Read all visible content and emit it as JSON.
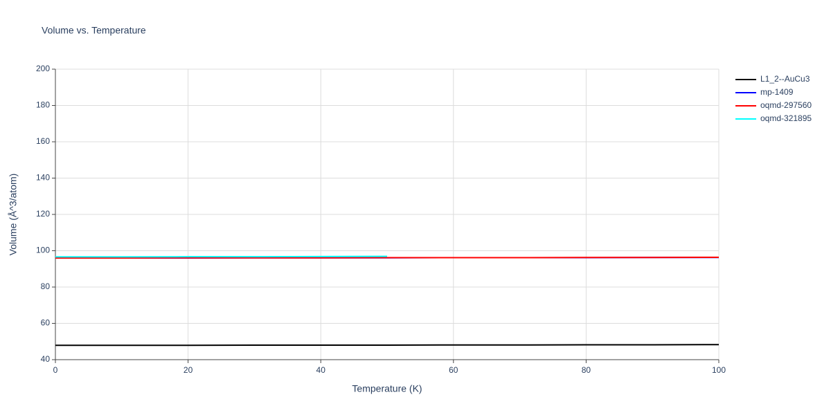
{
  "chart_data": {
    "type": "line",
    "title": "Volume vs. Temperature",
    "x_label": "Temperature (K)",
    "y_label": "Volume (Å^3/atom)",
    "x": [
      0,
      10,
      20,
      30,
      40,
      50,
      60,
      70,
      80,
      90,
      100
    ],
    "series": [
      {
        "name": "L1_2--AuCu3",
        "color": "#000000",
        "values": [
          47.9,
          47.9,
          47.9,
          48.0,
          48.0,
          48.0,
          48.1,
          48.1,
          48.2,
          48.2,
          48.3
        ]
      },
      {
        "name": "mp-1409",
        "color": "#0000ff",
        "values": [
          96.0,
          96.0,
          96.0,
          96.1,
          96.1,
          96.1,
          96.2,
          96.2,
          96.2,
          96.3,
          96.3
        ]
      },
      {
        "name": "oqmd-297560",
        "color": "#ff0000",
        "values": [
          96.0,
          96.0,
          96.1,
          96.1,
          96.1,
          96.2,
          96.2,
          96.2,
          96.3,
          96.3,
          96.4
        ]
      },
      {
        "name": "oqmd-321895",
        "color": "#00ffff",
        "values": [
          96.6,
          96.6,
          96.7,
          96.7,
          96.8,
          96.9,
          null,
          null,
          null,
          null,
          null
        ]
      }
    ],
    "xlim": [
      0,
      100
    ],
    "xticks": [
      0,
      20,
      40,
      60,
      80,
      100
    ],
    "ylim": [
      40,
      200
    ],
    "yticks": [
      40,
      60,
      80,
      100,
      120,
      140,
      160,
      180,
      200
    ],
    "grid": true,
    "legend": "right"
  }
}
